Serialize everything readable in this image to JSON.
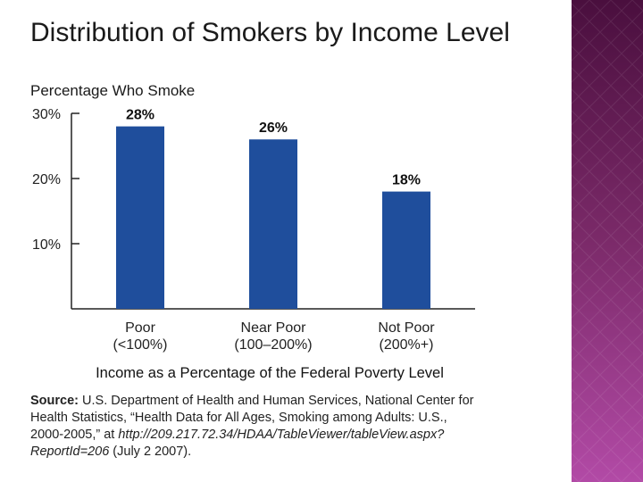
{
  "chart_data": {
    "type": "bar",
    "title": "Distribution of Smokers by Income Level",
    "ylabel": "Percentage Who Smoke",
    "xlabel": "Income as a Percentage of the Federal Poverty Level",
    "categories": [
      "Poor",
      "Near Poor",
      "Not Poor"
    ],
    "category_sublabels": [
      "(<100%)",
      "(100–200%)",
      "(200%+)"
    ],
    "values": [
      28,
      26,
      18
    ],
    "value_labels": [
      "28%",
      "26%",
      "18%"
    ],
    "ylim": [
      0,
      30
    ],
    "yticks": [
      10,
      20,
      30
    ],
    "ytick_labels": [
      "10%",
      "20%",
      "30%"
    ],
    "grid": false,
    "legend": "none",
    "bar_color": "#1f4e9c"
  },
  "source": {
    "label": "Source:",
    "text1": " U.S. Department of Health and Human Services, National Center for Health Statistics, “Health Data for All Ages, Smoking among Adults: U.S., 2000-2005,” at ",
    "url": "http://209.217.72.34/HDAA/TableViewer/tableView.aspx?ReportId=206",
    "text2": " (July 2 2007)."
  },
  "theme": {
    "panel_bg": "#ffffff",
    "side_gradient": [
      "#4a0f3e",
      "#7b2a69",
      "#b24aa6"
    ]
  }
}
